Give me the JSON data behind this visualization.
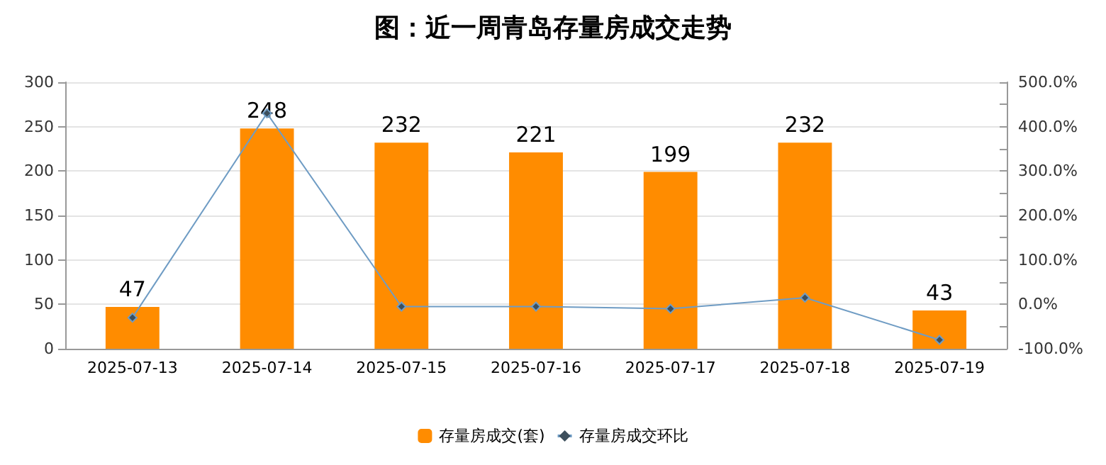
{
  "chart_data": {
    "type": "bar",
    "title": "图：近一周青岛存量房成交走势",
    "categories": [
      "2025-07-13",
      "2025-07-14",
      "2025-07-15",
      "2025-07-16",
      "2025-07-17",
      "2025-07-18",
      "2025-07-19"
    ],
    "series": [
      {
        "name": "存量房成交(套)",
        "color": "#ff8c00",
        "values": [
          47,
          248,
          232,
          221,
          199,
          232,
          43
        ],
        "data_labels": true
      },
      {
        "name": "存量房成交环比",
        "type": "line",
        "axis": "y2",
        "color": "#6f9cc4",
        "marker": "diamond",
        "values": [
          -30,
          430,
          -5,
          -5,
          -10,
          15,
          -80
        ]
      }
    ],
    "ylim": [
      0,
      300
    ],
    "yticks": [
      0,
      50,
      100,
      150,
      200,
      250,
      300
    ],
    "y2lim": [
      -100,
      500
    ],
    "y2ticks": [
      {
        "value": -100,
        "label": "-100.0%"
      },
      {
        "value": -50,
        "label": null
      },
      {
        "value": 0,
        "label": "0.0%"
      },
      {
        "value": 50,
        "label": null
      },
      {
        "value": 100,
        "label": "100.0%"
      },
      {
        "value": 150,
        "label": null
      },
      {
        "value": 200,
        "label": "200.0%"
      },
      {
        "value": 250,
        "label": null
      },
      {
        "value": 300,
        "label": "300.0%"
      },
      {
        "value": 350,
        "label": null
      },
      {
        "value": 400,
        "label": "400.0%"
      },
      {
        "value": 450,
        "label": null
      },
      {
        "value": 500,
        "label": "500.0%"
      }
    ],
    "grid": "y",
    "legend": "bottom"
  }
}
